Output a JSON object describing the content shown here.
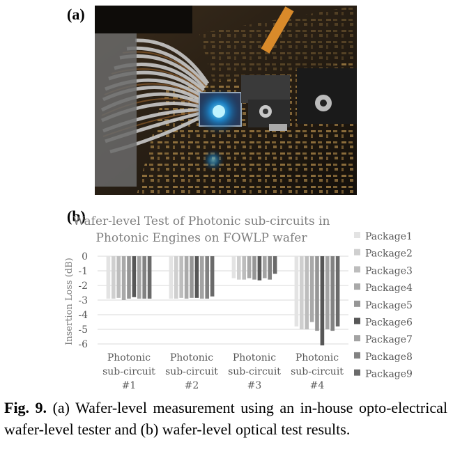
{
  "panel_a_label": "(a)",
  "panel_b_label": "(b)",
  "caption": {
    "fig_number": "Fig. 9.",
    "text": "(a) Wafer-level measurement using an in-house opto-electrical wafer-level tester and (b) wafer-level optical test results."
  },
  "colors": {
    "page_background": "#ffffff",
    "title_text": "#7f7f7f",
    "tick_text": "#595959",
    "gridline": "#d9d9d9",
    "package_colors": [
      "#e3e3e3",
      "#cfcfcf",
      "#bdbdbd",
      "#a9a9a9",
      "#969696",
      "#575757",
      "#a3a3a3",
      "#828282",
      "#6a6a6a"
    ]
  },
  "chart_data": {
    "type": "bar",
    "title_lines": [
      "Wafer-level Test of Photonic sub-circuits in",
      "Photonic Engines on FOWLP wafer"
    ],
    "ylabel": "Insertion Loss (dB)",
    "xlabel": "",
    "ylim": [
      -6,
      0
    ],
    "yticks": [
      0,
      -1,
      -2,
      -3,
      -4,
      -5,
      -6
    ],
    "grid": "horizontal",
    "legend_position": "right",
    "categories": [
      [
        "Photonic",
        "sub-circuit",
        "#1"
      ],
      [
        "Photonic",
        "sub-circuit",
        "#2"
      ],
      [
        "Photonic",
        "sub-circuit",
        "#3"
      ],
      [
        "Photonic",
        "sub-circuit",
        "#4"
      ]
    ],
    "series": [
      {
        "name": "Package1",
        "values": [
          -2.9,
          -2.9,
          -1.5,
          -4.8
        ]
      },
      {
        "name": "Package2",
        "values": [
          -2.9,
          -2.9,
          -1.6,
          -5.0
        ]
      },
      {
        "name": "Package3",
        "values": [
          -2.85,
          -2.85,
          -1.6,
          -5.0
        ]
      },
      {
        "name": "Package4",
        "values": [
          -3.0,
          -2.9,
          -1.5,
          -4.5
        ]
      },
      {
        "name": "Package5",
        "values": [
          -2.9,
          -2.85,
          -1.6,
          -5.1
        ]
      },
      {
        "name": "Package6",
        "values": [
          -2.8,
          -2.85,
          -1.65,
          -6.1
        ]
      },
      {
        "name": "Package7",
        "values": [
          -2.9,
          -2.9,
          -1.5,
          -5.0
        ]
      },
      {
        "name": "Package8",
        "values": [
          -2.9,
          -2.9,
          -1.6,
          -5.1
        ]
      },
      {
        "name": "Package9",
        "values": [
          -2.9,
          -2.75,
          -1.2,
          -4.8
        ]
      }
    ]
  }
}
